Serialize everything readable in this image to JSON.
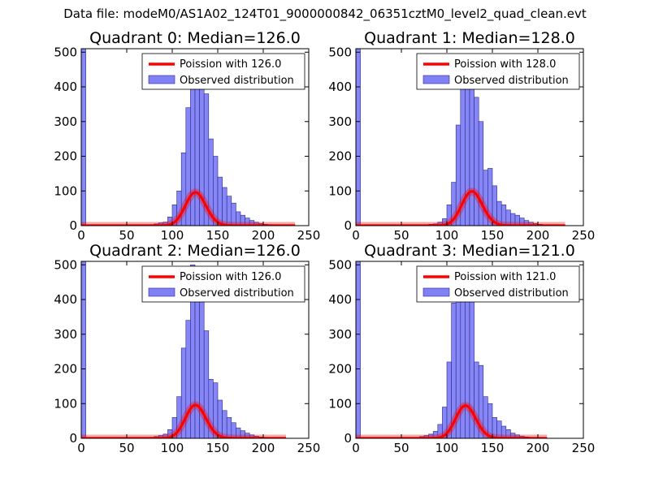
{
  "figure": {
    "title": "Data file: modeM0/AS1A02_124T01_9000000842_06351cztM0_level2_quad_clean.evt"
  },
  "colors": {
    "bar_fill": "#8080f7",
    "bar_edge": "#2b2b8a",
    "bar_light": "#c9c9f5",
    "poisson_line": "#ff0000",
    "axes": "#000000"
  },
  "chart_data": [
    {
      "type": "bar",
      "title": "Quadrant 0: Median=126.0",
      "xlim": [
        0,
        250
      ],
      "ylim": [
        0,
        510
      ],
      "xticks": [
        0,
        50,
        100,
        150,
        200,
        250
      ],
      "yticks": [
        0,
        100,
        200,
        300,
        400,
        500
      ],
      "bin_width": 5,
      "legend": {
        "location": "upper-right",
        "entries": [
          "Poission with 126.0",
          "Observed distribution"
        ]
      },
      "hist": {
        "x": [
          0,
          75,
          80,
          85,
          90,
          95,
          100,
          105,
          110,
          115,
          120,
          125,
          130,
          135,
          140,
          145,
          150,
          155,
          160,
          165,
          170,
          175,
          180,
          185,
          190,
          195,
          200,
          205,
          210,
          215,
          220,
          225,
          230
        ],
        "values": [
          510,
          3,
          5,
          8,
          10,
          25,
          60,
          100,
          210,
          340,
          430,
          470,
          440,
          380,
          250,
          200,
          140,
          110,
          85,
          65,
          40,
          30,
          22,
          15,
          10,
          6,
          4,
          3,
          2,
          2,
          1,
          1,
          1
        ]
      },
      "poisson": {
        "lambda": 126.0,
        "label": "Poission with 126.0",
        "x_range": [
          0,
          235
        ],
        "scale": 2700
      }
    },
    {
      "type": "bar",
      "title": "Quadrant 1: Median=128.0",
      "xlim": [
        0,
        250
      ],
      "ylim": [
        0,
        510
      ],
      "xticks": [
        0,
        50,
        100,
        150,
        200,
        250
      ],
      "yticks": [
        0,
        100,
        200,
        300,
        400,
        500
      ],
      "bin_width": 5,
      "legend": {
        "location": "upper-right",
        "entries": [
          "Poission with 128.0",
          "Observed distribution"
        ]
      },
      "hist": {
        "x": [
          0,
          80,
          85,
          90,
          95,
          100,
          105,
          110,
          115,
          120,
          125,
          130,
          135,
          140,
          145,
          150,
          155,
          160,
          165,
          170,
          175,
          180,
          185,
          190,
          195,
          200,
          205,
          210,
          215,
          220,
          225
        ],
        "values": [
          510,
          4,
          5,
          10,
          20,
          60,
          125,
          290,
          440,
          490,
          425,
          370,
          300,
          160,
          165,
          115,
          70,
          60,
          45,
          35,
          30,
          22,
          15,
          10,
          6,
          4,
          2,
          2,
          1,
          1,
          1
        ]
      },
      "poisson": {
        "lambda": 128.0,
        "label": "Poission with 128.0",
        "x_range": [
          0,
          230
        ],
        "scale": 2800
      }
    },
    {
      "type": "bar",
      "title": "Quadrant 2: Median=126.0",
      "xlim": [
        0,
        250
      ],
      "ylim": [
        0,
        510
      ],
      "xticks": [
        0,
        50,
        100,
        150,
        200,
        250
      ],
      "yticks": [
        0,
        100,
        200,
        300,
        400,
        500
      ],
      "bin_width": 5,
      "legend": {
        "location": "upper-right",
        "entries": [
          "Poission with 126.0",
          "Observed distribution"
        ]
      },
      "hist": {
        "x": [
          0,
          75,
          80,
          85,
          90,
          95,
          100,
          105,
          110,
          115,
          120,
          125,
          130,
          135,
          140,
          145,
          150,
          155,
          160,
          165,
          170,
          175,
          180,
          185,
          190,
          195,
          200,
          205,
          210,
          215,
          220
        ],
        "values": [
          510,
          3,
          5,
          8,
          12,
          25,
          60,
          120,
          260,
          340,
          500,
          490,
          400,
          310,
          170,
          160,
          110,
          80,
          60,
          45,
          30,
          22,
          15,
          10,
          6,
          4,
          3,
          2,
          2,
          1,
          1
        ]
      },
      "poisson": {
        "lambda": 126.0,
        "label": "Poission with 126.0",
        "x_range": [
          0,
          225
        ],
        "scale": 2700
      }
    },
    {
      "type": "bar",
      "title": "Quadrant 3: Median=121.0",
      "xlim": [
        0,
        250
      ],
      "ylim": [
        0,
        510
      ],
      "xticks": [
        0,
        50,
        100,
        150,
        200,
        250
      ],
      "yticks": [
        0,
        100,
        200,
        300,
        400,
        500
      ],
      "bin_width": 5,
      "legend": {
        "location": "upper-right",
        "entries": [
          "Poission with 121.0",
          "Observed distribution"
        ]
      },
      "hist": {
        "x": [
          0,
          65,
          70,
          75,
          80,
          85,
          90,
          95,
          100,
          105,
          110,
          115,
          120,
          125,
          130,
          135,
          140,
          145,
          150,
          155,
          160,
          165,
          170,
          175,
          180,
          185,
          190,
          195,
          200,
          205
        ],
        "values": [
          510,
          2,
          5,
          8,
          12,
          20,
          40,
          90,
          220,
          390,
          460,
          470,
          480,
          400,
          220,
          210,
          120,
          100,
          60,
          50,
          35,
          25,
          15,
          10,
          6,
          4,
          3,
          2,
          1,
          1
        ]
      },
      "poisson": {
        "lambda": 121.0,
        "label": "Poission with 121.0",
        "x_range": [
          0,
          210
        ],
        "scale": 2600
      }
    }
  ]
}
